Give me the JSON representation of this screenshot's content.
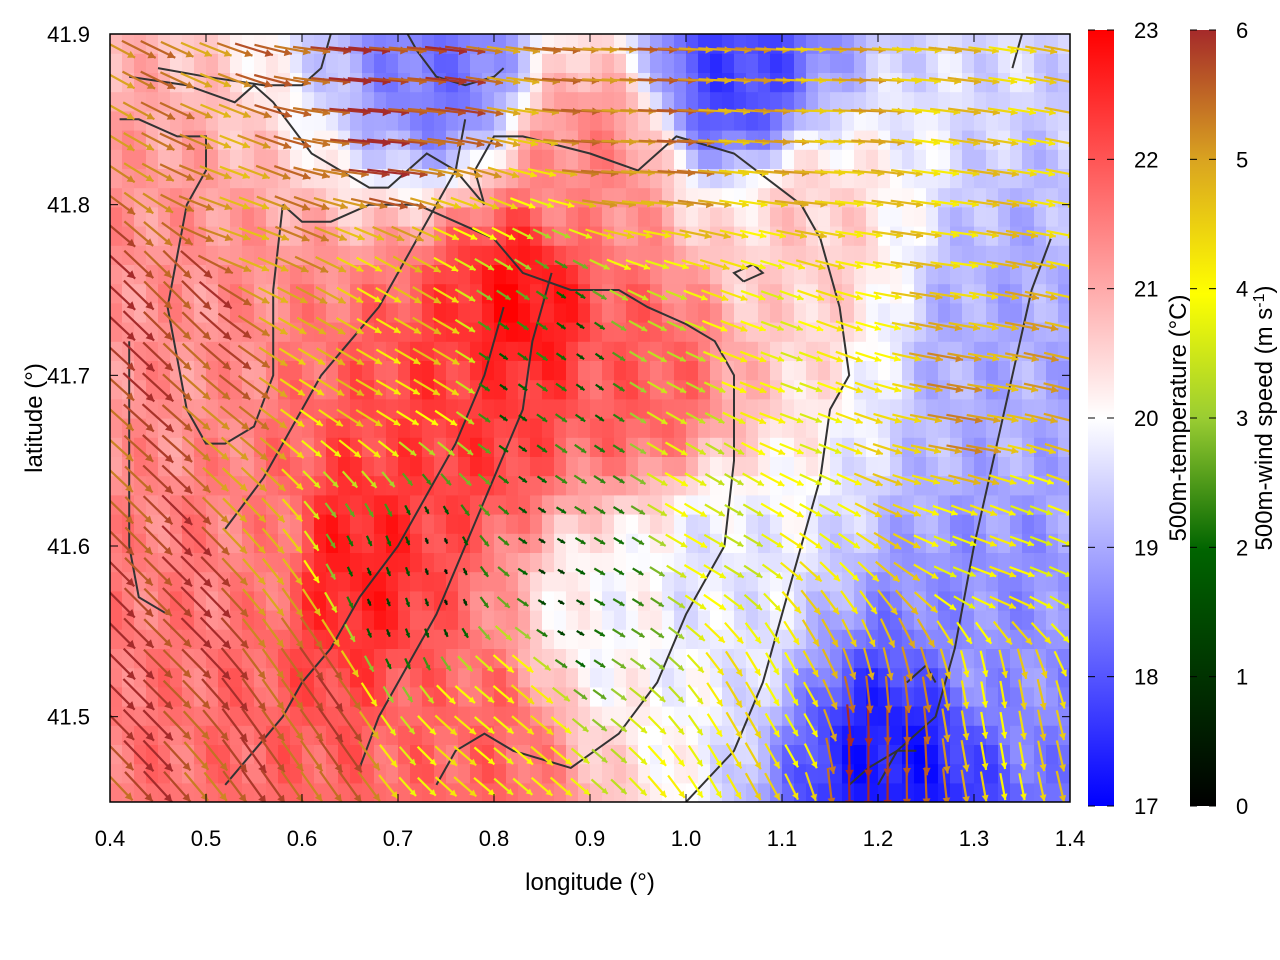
{
  "chart_data": {
    "type": "heatmap",
    "title": "",
    "xlabel": "longitude (°)",
    "ylabel": "latitude (°)",
    "xlim": [
      0.4,
      1.4
    ],
    "ylim": [
      41.45,
      41.9
    ],
    "x_ticks": [
      "0.4",
      "0.5",
      "0.6",
      "0.7",
      "0.8",
      "0.9",
      "1.0",
      "1.1",
      "1.2",
      "1.3",
      "1.4"
    ],
    "y_ticks": [
      "41.5",
      "41.6",
      "41.7",
      "41.8",
      "41.9"
    ],
    "temperature_colorbar": {
      "label": "500m-temperature (°C)",
      "range": [
        17,
        23
      ],
      "ticks": [
        "17",
        "18",
        "19",
        "20",
        "21",
        "22",
        "23"
      ],
      "colors": [
        "#0000ff",
        "#ffffff",
        "#ff0000"
      ]
    },
    "wind_colorbar": {
      "label_main": "500m-wind speed (m s",
      "label_sup": "-1",
      "label_end": ")",
      "range": [
        0,
        6
      ],
      "ticks": [
        "0",
        "1",
        "2",
        "3",
        "4",
        "5",
        "6"
      ],
      "colors": [
        "#000000",
        "#006400",
        "#9acd32",
        "#ffff00",
        "#daa520",
        "#a52a2a"
      ]
    },
    "temperature_centers": [
      {
        "lon": 0.83,
        "lat": 41.74,
        "value": 22.8
      },
      {
        "lon": 0.65,
        "lat": 41.59,
        "value": 22.6
      },
      {
        "lon": 0.78,
        "lat": 41.68,
        "value": 22.3
      },
      {
        "lon": 0.95,
        "lat": 41.7,
        "value": 21.9
      },
      {
        "lon": 0.9,
        "lat": 41.82,
        "value": 21.4
      },
      {
        "lon": 1.12,
        "lat": 41.78,
        "value": 20.6
      },
      {
        "lon": 0.55,
        "lat": 41.6,
        "value": 21.5
      },
      {
        "lon": 0.47,
        "lat": 41.7,
        "value": 21.3
      },
      {
        "lon": 0.78,
        "lat": 41.48,
        "value": 21.8
      },
      {
        "lon": 1.22,
        "lat": 41.47,
        "value": 17.3
      },
      {
        "lon": 1.05,
        "lat": 41.88,
        "value": 17.8
      },
      {
        "lon": 0.75,
        "lat": 41.88,
        "value": 18.4
      },
      {
        "lon": 1.33,
        "lat": 41.72,
        "value": 19.0
      },
      {
        "lon": 1.32,
        "lat": 41.55,
        "value": 18.7
      },
      {
        "lon": 0.92,
        "lat": 41.56,
        "value": 20.0
      },
      {
        "lon": 1.03,
        "lat": 41.58,
        "value": 19.7
      }
    ],
    "wind_regions": [
      {
        "lon": 0.45,
        "lat": 41.55,
        "speed": 5.9,
        "dir_deg": 135
      },
      {
        "lon": 0.47,
        "lat": 41.75,
        "speed": 5.8,
        "dir_deg": 135
      },
      {
        "lon": 0.6,
        "lat": 41.5,
        "speed": 5.6,
        "dir_deg": 125
      },
      {
        "lon": 0.52,
        "lat": 41.79,
        "speed": 4.8,
        "dir_deg": 160
      },
      {
        "lon": 0.68,
        "lat": 41.86,
        "speed": 5.8,
        "dir_deg": 175
      },
      {
        "lon": 0.95,
        "lat": 41.86,
        "speed": 5.2,
        "dir_deg": 178
      },
      {
        "lon": 1.15,
        "lat": 41.86,
        "speed": 4.6,
        "dir_deg": 178
      },
      {
        "lon": 1.25,
        "lat": 41.79,
        "speed": 4.2,
        "dir_deg": 172
      },
      {
        "lon": 1.3,
        "lat": 41.68,
        "speed": 4.8,
        "dir_deg": 170
      },
      {
        "lon": 1.33,
        "lat": 41.6,
        "speed": 3.5,
        "dir_deg": 160
      },
      {
        "lon": 0.7,
        "lat": 41.72,
        "speed": 4.2,
        "dir_deg": 150
      },
      {
        "lon": 0.85,
        "lat": 41.7,
        "speed": 1.2,
        "dir_deg": 145
      },
      {
        "lon": 0.72,
        "lat": 41.57,
        "speed": 0.6,
        "dir_deg": 110
      },
      {
        "lon": 0.88,
        "lat": 41.58,
        "speed": 1.0,
        "dir_deg": 150
      },
      {
        "lon": 1.03,
        "lat": 41.62,
        "speed": 3.2,
        "dir_deg": 150
      },
      {
        "lon": 1.12,
        "lat": 41.7,
        "speed": 3.5,
        "dir_deg": 160
      },
      {
        "lon": 1.1,
        "lat": 41.5,
        "speed": 3.8,
        "dir_deg": 120
      },
      {
        "lon": 1.2,
        "lat": 41.47,
        "speed": 6.0,
        "dir_deg": 90
      },
      {
        "lon": 1.32,
        "lat": 41.5,
        "speed": 4.0,
        "dir_deg": 100
      },
      {
        "lon": 0.8,
        "lat": 41.5,
        "speed": 3.8,
        "dir_deg": 140
      }
    ],
    "wind_grid_spacing_deg": 0.02,
    "contour_lines": [
      [
        [
          0.42,
          41.875
        ],
        [
          0.48,
          41.87
        ],
        [
          0.53,
          41.86
        ],
        [
          0.55,
          41.87
        ],
        [
          0.57,
          41.86
        ],
        [
          0.61,
          41.83
        ],
        [
          0.64,
          41.82
        ],
        [
          0.67,
          41.81
        ],
        [
          0.69,
          41.81
        ],
        [
          0.71,
          41.82
        ],
        [
          0.73,
          41.83
        ],
        [
          0.76,
          41.82
        ],
        [
          0.79,
          41.8
        ],
        [
          0.78,
          41.82
        ],
        [
          0.8,
          41.84
        ],
        [
          0.83,
          41.84
        ],
        [
          0.9,
          41.83
        ],
        [
          0.95,
          41.82
        ],
        [
          0.99,
          41.84
        ],
        [
          1.05,
          41.83
        ],
        [
          1.12,
          41.8
        ],
        [
          1.14,
          41.78
        ],
        [
          1.16,
          41.74
        ],
        [
          1.17,
          41.7
        ],
        [
          1.15,
          41.68
        ],
        [
          1.14,
          41.64
        ],
        [
          1.12,
          41.6
        ],
        [
          1.1,
          41.56
        ],
        [
          1.08,
          41.52
        ],
        [
          1.05,
          41.48
        ],
        [
          1.0,
          41.45
        ]
      ],
      [
        [
          0.58,
          41.8
        ],
        [
          0.6,
          41.79
        ],
        [
          0.63,
          41.79
        ],
        [
          0.67,
          41.8
        ],
        [
          0.72,
          41.8
        ],
        [
          0.76,
          41.79
        ],
        [
          0.8,
          41.78
        ],
        [
          0.83,
          41.76
        ],
        [
          0.88,
          41.75
        ],
        [
          0.93,
          41.75
        ],
        [
          0.96,
          41.74
        ],
        [
          1.0,
          41.73
        ],
        [
          1.03,
          41.72
        ],
        [
          1.05,
          41.7
        ],
        [
          1.05,
          41.65
        ],
        [
          1.04,
          41.6
        ],
        [
          1.0,
          41.56
        ],
        [
          0.97,
          41.52
        ],
        [
          0.93,
          41.49
        ],
        [
          0.88,
          41.47
        ],
        [
          0.82,
          41.48
        ],
        [
          0.79,
          41.49
        ],
        [
          0.76,
          41.48
        ],
        [
          0.74,
          41.46
        ]
      ],
      [
        [
          0.58,
          41.8
        ],
        [
          0.57,
          41.75
        ],
        [
          0.57,
          41.7
        ],
        [
          0.55,
          41.67
        ],
        [
          0.52,
          41.66
        ],
        [
          0.5,
          41.66
        ],
        [
          0.48,
          41.68
        ],
        [
          0.47,
          41.71
        ],
        [
          0.46,
          41.74
        ],
        [
          0.47,
          41.77
        ],
        [
          0.48,
          41.8
        ],
        [
          0.5,
          41.82
        ],
        [
          0.5,
          41.84
        ],
        [
          0.47,
          41.84
        ],
        [
          0.43,
          41.85
        ],
        [
          0.41,
          41.85
        ]
      ],
      [
        [
          0.42,
          41.72
        ],
        [
          0.42,
          41.68
        ],
        [
          0.42,
          41.64
        ],
        [
          0.42,
          41.6
        ],
        [
          0.43,
          41.57
        ],
        [
          0.46,
          41.56
        ]
      ],
      [
        [
          0.52,
          41.46
        ],
        [
          0.55,
          41.48
        ],
        [
          0.58,
          41.5
        ],
        [
          0.6,
          41.52
        ],
        [
          0.63,
          41.54
        ],
        [
          0.66,
          41.57
        ],
        [
          0.7,
          41.6
        ],
        [
          0.73,
          41.63
        ],
        [
          0.76,
          41.66
        ],
        [
          0.79,
          41.7
        ],
        [
          0.81,
          41.74
        ]
      ],
      [
        [
          0.52,
          41.61
        ],
        [
          0.56,
          41.64
        ],
        [
          0.59,
          41.67
        ],
        [
          0.62,
          41.7
        ],
        [
          0.65,
          41.72
        ],
        [
          0.68,
          41.74
        ],
        [
          0.7,
          41.76
        ],
        [
          0.73,
          41.79
        ],
        [
          0.76,
          41.82
        ],
        [
          0.77,
          41.85
        ]
      ],
      [
        [
          0.66,
          41.47
        ],
        [
          0.68,
          41.5
        ],
        [
          0.71,
          41.53
        ],
        [
          0.74,
          41.56
        ],
        [
          0.77,
          41.6
        ],
        [
          0.8,
          41.64
        ],
        [
          0.83,
          41.68
        ],
        [
          0.84,
          41.72
        ],
        [
          0.86,
          41.76
        ]
      ],
      [
        [
          0.45,
          41.88
        ],
        [
          0.5,
          41.875
        ],
        [
          0.56,
          41.87
        ],
        [
          0.6,
          41.87
        ],
        [
          0.62,
          41.88
        ],
        [
          0.63,
          41.9
        ]
      ],
      [
        [
          0.71,
          41.9
        ],
        [
          0.72,
          41.89
        ],
        [
          0.74,
          41.875
        ],
        [
          0.77,
          41.87
        ],
        [
          0.8,
          41.875
        ],
        [
          0.81,
          41.88
        ]
      ],
      [
        [
          1.06,
          41.755
        ],
        [
          1.08,
          41.76
        ],
        [
          1.07,
          41.765
        ],
        [
          1.05,
          41.76
        ],
        [
          1.06,
          41.755
        ]
      ],
      [
        [
          1.2,
          41.46
        ],
        [
          1.22,
          41.48
        ],
        [
          1.24,
          41.49
        ],
        [
          1.26,
          41.5
        ],
        [
          1.27,
          41.52
        ],
        [
          1.28,
          41.54
        ],
        [
          1.3,
          41.6
        ],
        [
          1.32,
          41.65
        ],
        [
          1.34,
          41.7
        ],
        [
          1.36,
          41.75
        ],
        [
          1.38,
          41.78
        ]
      ],
      [
        [
          1.34,
          41.88
        ],
        [
          1.35,
          41.9
        ]
      ],
      [
        [
          1.17,
          41.46
        ],
        [
          1.19,
          41.47
        ],
        [
          1.22,
          41.48
        ],
        [
          1.24,
          41.48
        ]
      ],
      [
        [
          1.23,
          41.52
        ],
        [
          1.25,
          41.53
        ],
        [
          1.26,
          41.52
        ]
      ]
    ]
  }
}
